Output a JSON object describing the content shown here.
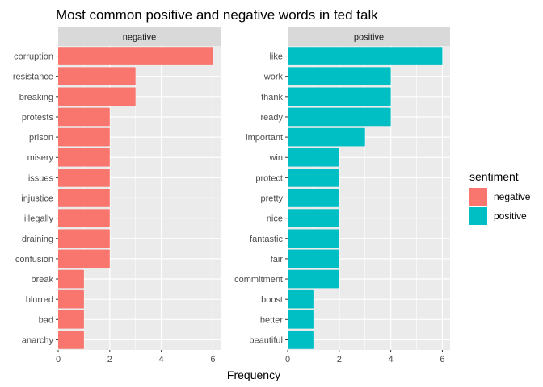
{
  "chart_data": {
    "type": "bar",
    "orientation": "horizontal",
    "title": "Most common positive and negative words in ted talk",
    "xlabel": "Frequency",
    "ylabel": "",
    "xlim": [
      0,
      6.3
    ],
    "x_ticks": [
      0,
      2,
      4,
      6
    ],
    "grid": true,
    "legend": {
      "title": "sentiment",
      "placement": "right",
      "entries": [
        {
          "name": "negative",
          "color": "#F8766D"
        },
        {
          "name": "positive",
          "color": "#00BFC4"
        }
      ]
    },
    "facets": [
      {
        "name": "negative",
        "color": "#F8766D",
        "categories": [
          "corruption",
          "resistance",
          "breaking",
          "protests",
          "prison",
          "misery",
          "issues",
          "injustice",
          "illegally",
          "draining",
          "confusion",
          "break",
          "blurred",
          "bad",
          "anarchy"
        ],
        "values": [
          6,
          3,
          3,
          2,
          2,
          2,
          2,
          2,
          2,
          2,
          2,
          1,
          1,
          1,
          1
        ]
      },
      {
        "name": "positive",
        "color": "#00BFC4",
        "categories": [
          "like",
          "work",
          "thank",
          "ready",
          "important",
          "win",
          "protect",
          "pretty",
          "nice",
          "fantastic",
          "fair",
          "commitment",
          "boost",
          "better",
          "beautiful"
        ],
        "values": [
          6,
          4,
          4,
          4,
          3,
          2,
          2,
          2,
          2,
          2,
          2,
          2,
          1,
          1,
          1
        ]
      }
    ]
  }
}
